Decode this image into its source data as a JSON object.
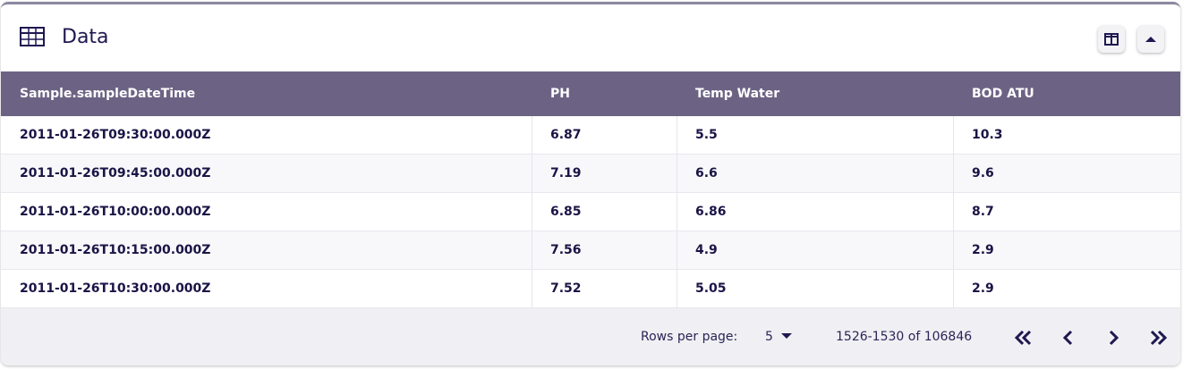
{
  "header": {
    "title": "Data"
  },
  "table": {
    "columns": [
      "Sample.sampleDateTime",
      "PH",
      "Temp Water",
      "BOD ATU"
    ],
    "rows": [
      [
        "2011-01-26T09:30:00.000Z",
        "6.87",
        "5.5",
        "10.3"
      ],
      [
        "2011-01-26T09:45:00.000Z",
        "7.19",
        "6.6",
        "9.6"
      ],
      [
        "2011-01-26T10:00:00.000Z",
        "6.85",
        "6.86",
        "8.7"
      ],
      [
        "2011-01-26T10:15:00.000Z",
        "7.56",
        "4.9",
        "2.9"
      ],
      [
        "2011-01-26T10:30:00.000Z",
        "7.52",
        "5.05",
        "2.9"
      ]
    ]
  },
  "footer": {
    "rows_per_page_label": "Rows per page:",
    "rows_per_page": "5",
    "range": "1526-1530 of 106846"
  }
}
